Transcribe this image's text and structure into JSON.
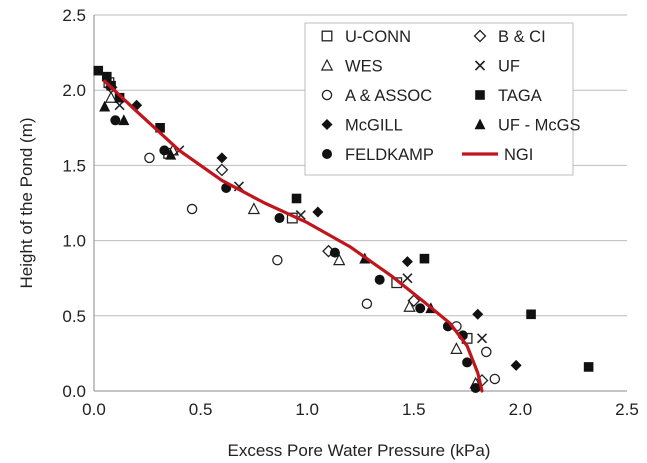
{
  "chart_data": {
    "type": "scatter",
    "xlabel": "Excess Pore Water Pressure (kPa)",
    "ylabel": "Height of the Pond (m)",
    "xlim": [
      0,
      2.5
    ],
    "ylim": [
      0,
      2.5
    ],
    "xticks": [
      "0.0",
      "0.5",
      "1.0",
      "1.5",
      "2.0",
      "2.5"
    ],
    "yticks": [
      "0.0",
      "0.5",
      "1.0",
      "1.5",
      "2.0",
      "2.5"
    ],
    "grid": "horizontal",
    "legend_position": "top-right",
    "series": [
      {
        "name": "U-CONN",
        "marker": "square-open",
        "color": "#222222",
        "points": [
          [
            0.07,
            2.05
          ],
          [
            0.35,
            1.58
          ],
          [
            0.93,
            1.15
          ],
          [
            1.42,
            0.72
          ],
          [
            1.75,
            0.35
          ]
        ]
      },
      {
        "name": "B & CI",
        "marker": "diamond-open",
        "color": "#222222",
        "points": [
          [
            0.08,
            2.02
          ],
          [
            0.6,
            1.47
          ],
          [
            1.1,
            0.93
          ],
          [
            1.5,
            0.6
          ],
          [
            1.82,
            0.07
          ]
        ]
      },
      {
        "name": "WES",
        "marker": "triangle-open",
        "color": "#222222",
        "points": [
          [
            0.08,
            1.95
          ],
          [
            0.37,
            1.6
          ],
          [
            0.75,
            1.21
          ],
          [
            1.15,
            0.87
          ],
          [
            1.48,
            0.56
          ],
          [
            1.7,
            0.28
          ],
          [
            1.79,
            0.05
          ]
        ]
      },
      {
        "name": "UF",
        "marker": "x",
        "color": "#222222",
        "points": [
          [
            0.12,
            1.9
          ],
          [
            0.4,
            1.6
          ],
          [
            0.68,
            1.36
          ],
          [
            0.97,
            1.17
          ],
          [
            1.47,
            0.75
          ],
          [
            1.82,
            0.35
          ]
        ]
      },
      {
        "name": "A & ASSOC",
        "marker": "circle-open",
        "color": "#222222",
        "points": [
          [
            0.26,
            1.55
          ],
          [
            0.46,
            1.21
          ],
          [
            0.86,
            0.87
          ],
          [
            1.28,
            0.58
          ],
          [
            1.7,
            0.43
          ],
          [
            1.84,
            0.26
          ],
          [
            1.88,
            0.08
          ]
        ]
      },
      {
        "name": "TAGA",
        "marker": "square-filled",
        "color": "#111111",
        "points": [
          [
            0.02,
            2.13
          ],
          [
            0.06,
            2.09
          ],
          [
            0.08,
            2.03
          ],
          [
            0.12,
            1.95
          ],
          [
            0.31,
            1.75
          ],
          [
            0.95,
            1.28
          ],
          [
            1.55,
            0.88
          ],
          [
            2.05,
            0.51
          ],
          [
            2.32,
            0.16
          ]
        ]
      },
      {
        "name": "McGILL",
        "marker": "diamond-filled",
        "color": "#111111",
        "points": [
          [
            0.2,
            1.9
          ],
          [
            0.6,
            1.55
          ],
          [
            1.05,
            1.19
          ],
          [
            1.47,
            0.86
          ],
          [
            1.8,
            0.51
          ],
          [
            1.98,
            0.17
          ]
        ]
      },
      {
        "name": "UF - McGS",
        "marker": "triangle-filled",
        "color": "#111111",
        "points": [
          [
            0.05,
            1.89
          ],
          [
            0.14,
            1.8
          ],
          [
            0.36,
            1.57
          ],
          [
            1.27,
            0.88
          ],
          [
            1.58,
            0.55
          ]
        ]
      },
      {
        "name": "FELDKAMP",
        "marker": "circle-filled",
        "color": "#111111",
        "points": [
          [
            0.1,
            1.8
          ],
          [
            0.33,
            1.6
          ],
          [
            0.62,
            1.35
          ],
          [
            0.87,
            1.15
          ],
          [
            1.13,
            0.92
          ],
          [
            1.34,
            0.74
          ],
          [
            1.53,
            0.55
          ],
          [
            1.66,
            0.43
          ],
          [
            1.73,
            0.37
          ],
          [
            1.75,
            0.19
          ],
          [
            1.79,
            0.02
          ]
        ]
      },
      {
        "name": "NGI",
        "marker": "line",
        "color": "#c0151c",
        "points": [
          [
            0.05,
            2.06
          ],
          [
            0.2,
            1.86
          ],
          [
            0.4,
            1.6
          ],
          [
            0.6,
            1.4
          ],
          [
            0.8,
            1.25
          ],
          [
            1.0,
            1.12
          ],
          [
            1.2,
            0.96
          ],
          [
            1.4,
            0.76
          ],
          [
            1.55,
            0.59
          ],
          [
            1.67,
            0.45
          ],
          [
            1.75,
            0.3
          ],
          [
            1.8,
            0.12
          ],
          [
            1.82,
            0.0
          ]
        ]
      }
    ]
  }
}
